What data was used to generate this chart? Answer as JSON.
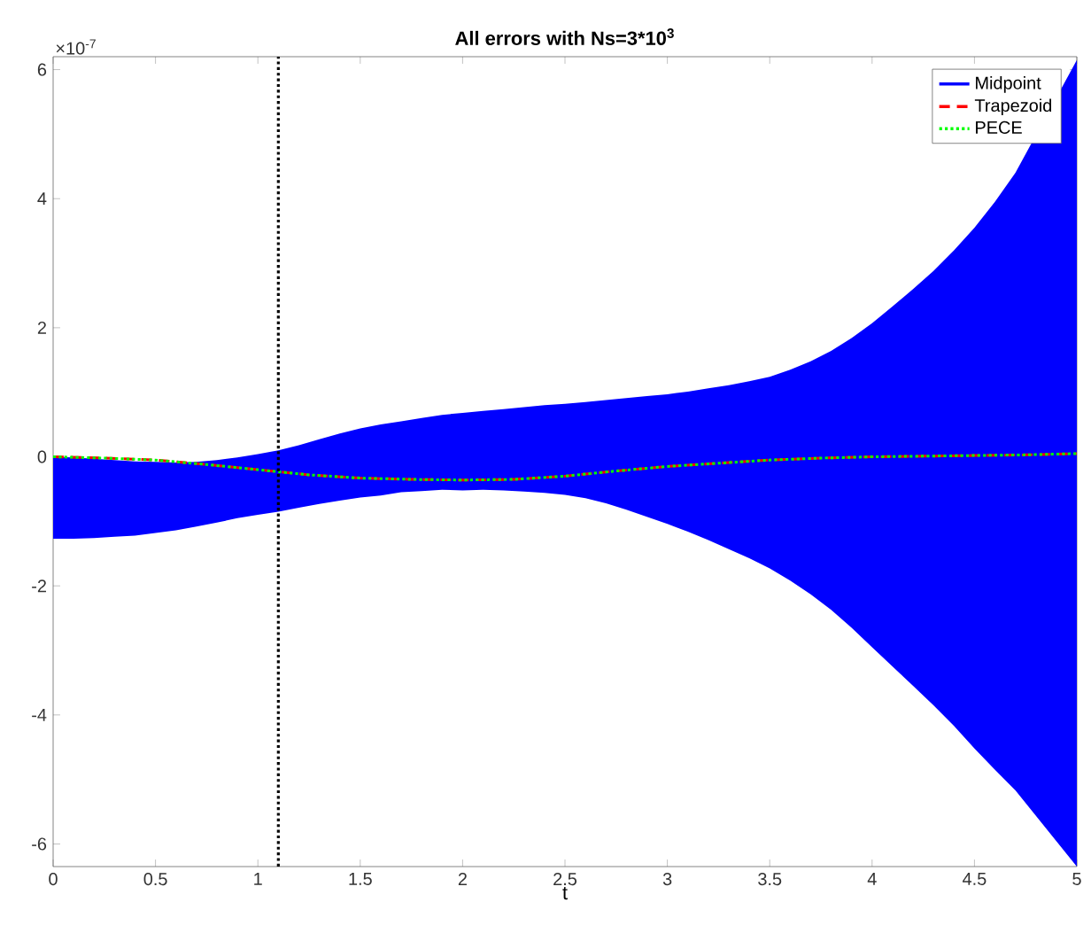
{
  "chart_data": {
    "type": "line",
    "title": "All errors with Ns=3*10$^{3}$",
    "xlabel": "t",
    "annotations": [
      "×10$^{-7}$"
    ],
    "xlim": [
      0,
      5
    ],
    "ylim": [
      -6.35,
      6.2
    ],
    "xticks": [
      0,
      0.5,
      1,
      1.5,
      2,
      2.5,
      3,
      3.5,
      4,
      4.5,
      5
    ],
    "yticks": [
      -6,
      -4,
      -2,
      0,
      2,
      4,
      6
    ],
    "grid": false,
    "legend": "top right",
    "ref_lines": [
      {
        "axis": "x",
        "value": 1.1,
        "color": "#000000",
        "line_style": "dotted"
      }
    ],
    "series": [
      {
        "name": "Midpoint",
        "color": "#0000ff",
        "line_style": "solid",
        "x": [
          0,
          0.1,
          0.2,
          0.3,
          0.4,
          0.5,
          0.6,
          0.7,
          0.8,
          0.9,
          1.0,
          1.1,
          1.2,
          1.3,
          1.4,
          1.5,
          1.6,
          1.7,
          1.8,
          1.9,
          2.0,
          2.1,
          2.2,
          2.3,
          2.4,
          2.5,
          2.6,
          2.7,
          2.8,
          2.9,
          3.0,
          3.1,
          3.2,
          3.3,
          3.4,
          3.5,
          3.6,
          3.7,
          3.8,
          3.9,
          4.0,
          4.1,
          4.2,
          4.3,
          4.4,
          4.5,
          4.6,
          4.7,
          4.8,
          4.9,
          5.0
        ],
        "values": [
          null,
          null,
          null,
          null,
          null,
          null,
          null,
          null,
          null,
          null,
          null,
          null,
          null,
          null,
          null,
          null,
          null,
          null,
          null,
          null,
          null,
          null,
          null,
          null,
          null,
          null,
          null,
          null,
          null,
          null,
          null,
          null,
          null,
          null,
          null,
          null,
          null,
          null,
          null,
          null,
          null,
          null,
          null,
          null,
          null,
          null,
          null,
          null,
          null,
          null,
          null
        ],
        "upper": [
          0.0,
          -0.01,
          -0.03,
          -0.05,
          -0.07,
          -0.08,
          -0.09,
          -0.08,
          -0.05,
          -0.01,
          0.04,
          0.1,
          0.18,
          0.27,
          0.36,
          0.44,
          0.5,
          0.55,
          0.6,
          0.65,
          0.68,
          0.71,
          0.74,
          0.77,
          0.8,
          0.82,
          0.85,
          0.88,
          0.91,
          0.94,
          0.97,
          1.01,
          1.06,
          1.11,
          1.17,
          1.24,
          1.35,
          1.48,
          1.64,
          1.84,
          2.07,
          2.33,
          2.6,
          2.88,
          3.2,
          3.55,
          3.95,
          4.4,
          null,
          null,
          6.15
        ],
        "lower": [
          -1.27,
          -1.27,
          -1.26,
          -1.24,
          -1.22,
          -1.18,
          -1.14,
          -1.08,
          -1.02,
          -0.95,
          -0.9,
          -0.85,
          -0.79,
          -0.73,
          -0.68,
          -0.63,
          -0.6,
          -0.55,
          -0.53,
          -0.51,
          -0.52,
          -0.51,
          -0.52,
          -0.54,
          -0.56,
          -0.59,
          -0.64,
          -0.72,
          -0.82,
          -0.93,
          -1.04,
          -1.16,
          -1.29,
          -1.43,
          -1.57,
          -1.73,
          -1.92,
          -2.13,
          -2.37,
          -2.65,
          -2.95,
          -3.25,
          -3.55,
          -3.85,
          -4.17,
          -4.52,
          -4.85,
          -5.17,
          null,
          null,
          -6.35
        ]
      },
      {
        "name": "Trapezoid",
        "color": "#ff0000",
        "line_style": "dashed",
        "x": [
          0,
          0.25,
          0.5,
          0.75,
          1,
          1.25,
          1.5,
          1.75,
          2,
          2.25,
          2.5,
          2.75,
          3,
          3.25,
          3.5,
          3.75,
          4,
          4.25,
          4.5,
          4.75,
          5
        ],
        "values": [
          0,
          -0.02,
          -0.05,
          -0.12,
          -0.2,
          -0.28,
          -0.33,
          -0.35,
          -0.36,
          -0.35,
          -0.3,
          -0.22,
          -0.15,
          -0.1,
          -0.05,
          -0.02,
          0,
          0.01,
          0.02,
          0.03,
          0.05
        ]
      },
      {
        "name": "PECE",
        "color": "#00ff00",
        "line_style": "dotted",
        "x": [
          0,
          0.25,
          0.5,
          0.75,
          1,
          1.25,
          1.5,
          1.75,
          2,
          2.25,
          2.5,
          2.75,
          3,
          3.25,
          3.5,
          3.75,
          4,
          4.25,
          4.5,
          4.75,
          5
        ],
        "values": [
          0,
          -0.02,
          -0.05,
          -0.12,
          -0.2,
          -0.28,
          -0.33,
          -0.35,
          -0.36,
          -0.35,
          -0.3,
          -0.22,
          -0.15,
          -0.1,
          -0.05,
          -0.02,
          0,
          0.01,
          0.02,
          0.03,
          0.05
        ]
      }
    ]
  }
}
